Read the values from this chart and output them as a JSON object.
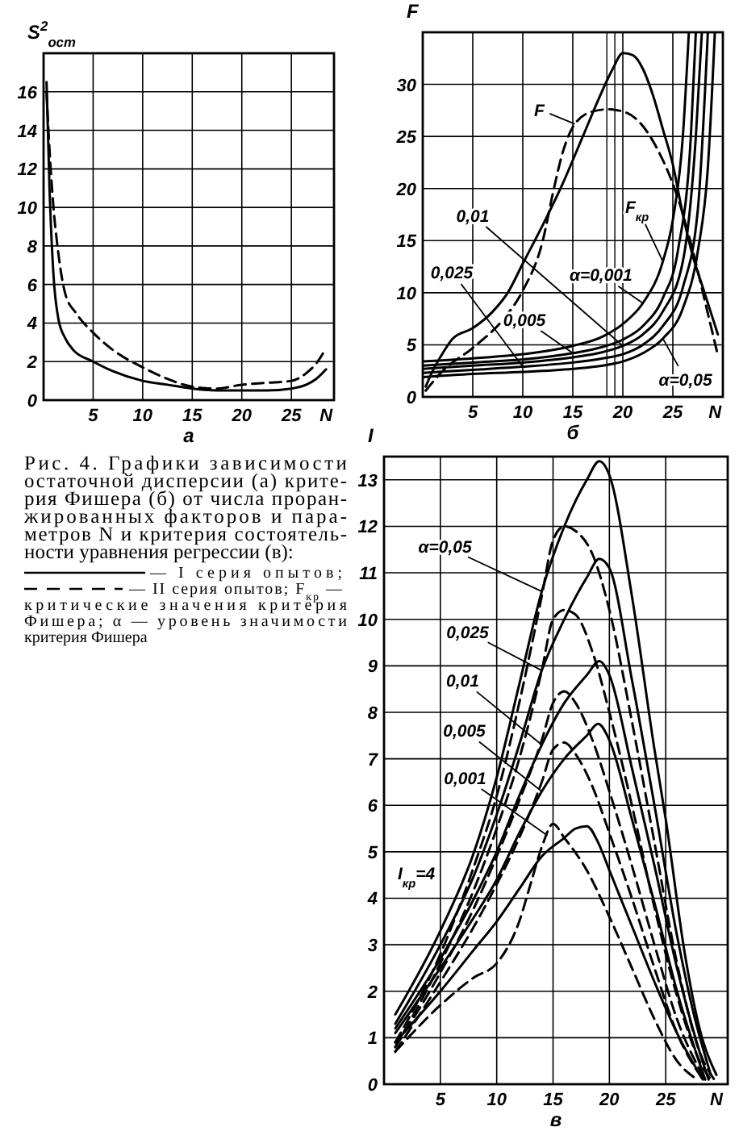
{
  "chart_data": [
    {
      "type": "line",
      "xlabel": "а",
      "ylabel": "S$^{2}$$_{ост}$",
      "xlim": [
        0,
        29.3
      ],
      "ylim": [
        0,
        18
      ],
      "xticks": [
        5,
        10,
        15,
        20,
        25,
        {
          "value": 28.5,
          "label": "N"
        }
      ],
      "yticks": [
        0,
        2,
        4,
        6,
        8,
        10,
        12,
        14,
        16
      ],
      "grid": true,
      "series": [
        {
          "color": "#000000",
          "line_style": "solid",
          "x": [
            0.3,
            0.6,
            1,
            1.5,
            2.2,
            3,
            5,
            7,
            10,
            12.5,
            15,
            17.5,
            20,
            22.5,
            25,
            26.5,
            27.5,
            28.5
          ],
          "values": [
            16.5,
            11,
            6.5,
            4.2,
            3.2,
            2.6,
            2.0,
            1.5,
            1.0,
            0.8,
            0.6,
            0.5,
            0.5,
            0.5,
            0.6,
            0.8,
            1.1,
            1.6
          ]
        },
        {
          "color": "#000000",
          "line_style": "dashed",
          "x": [
            0.3,
            0.6,
            1,
            1.4,
            2.2,
            3.3,
            5,
            7,
            10,
            12.5,
            15,
            17.4,
            20,
            22.5,
            25,
            26.5,
            27.5,
            28.5
          ],
          "values": [
            16,
            13,
            10,
            8,
            5.5,
            4.5,
            3.5,
            2.6,
            1.7,
            1.1,
            0.7,
            0.6,
            0.8,
            0.9,
            1.0,
            1.4,
            1.9,
            2.7
          ]
        }
      ]
    },
    {
      "type": "line",
      "xlabel": "б",
      "ylabel": "F",
      "xlim": [
        0,
        30
      ],
      "ylim": [
        0,
        35
      ],
      "xticks": [
        5,
        10,
        15,
        20,
        25,
        {
          "value": 29.2,
          "label": "N"
        }
      ],
      "yticks": [
        0,
        5,
        10,
        15,
        20,
        25,
        30
      ],
      "grid": true,
      "ref_lines": [
        {
          "axis": "x",
          "value": 18.4
        },
        {
          "axis": "x",
          "value": 19.2
        }
      ],
      "annotations": [
        {
          "text": "F",
          "x": 15.2,
          "y": 26.2
        },
        {
          "text": "0,01",
          "x": 20,
          "y": 4.9
        },
        {
          "text": "0,025",
          "x": 10,
          "y": 2.9
        },
        {
          "text": "0,005",
          "x": 15,
          "y": 4.2
        },
        {
          "text": "α=0,001",
          "x": 22,
          "y": 9
        },
        {
          "text": "α=0,05",
          "x": 24,
          "y": 5.6
        },
        {
          "text": "F$_{кр}$",
          "x": 24,
          "y": 13
        }
      ],
      "series": [
        {
          "color": "#000000",
          "line_style": "solid",
          "x": [
            0.3,
            1,
            2,
            3,
            5,
            7,
            8.5,
            10,
            12,
            14,
            16,
            18,
            19,
            20,
            21,
            22,
            23,
            24,
            25,
            26,
            27,
            28,
            29,
            29.5
          ],
          "values": [
            1,
            2.5,
            4.2,
            5.6,
            6.6,
            8.2,
            10,
            12.8,
            16.5,
            20.5,
            25,
            29.5,
            31.5,
            33,
            32.8,
            31.5,
            29,
            25.7,
            22.3,
            17.5,
            13.5,
            10.5,
            7.5,
            6
          ]
        },
        {
          "color": "#000000",
          "line_style": "dashed",
          "x": [
            0.3,
            2,
            5,
            8,
            10,
            12,
            13,
            14,
            15.2,
            17,
            18.5,
            20.3,
            22,
            23.5,
            25.7,
            27,
            28.5,
            29.5
          ],
          "values": [
            0.6,
            2.5,
            4.7,
            7.4,
            10.2,
            15,
            19.5,
            23.5,
            26.2,
            27.4,
            27.6,
            27.3,
            26,
            23.7,
            18.5,
            14,
            8,
            4
          ]
        },
        {
          "color": "#000000",
          "line_style": "solid",
          "x": [
            0,
            5,
            10,
            15,
            18,
            20,
            22,
            24,
            25,
            26,
            26.6
          ],
          "values": [
            3.4,
            3.7,
            4.1,
            4.9,
            5.8,
            7,
            9,
            13,
            17,
            25,
            35
          ]
        },
        {
          "color": "#000000",
          "line_style": "solid",
          "x": [
            0,
            5,
            10,
            15,
            18,
            20,
            22,
            24,
            25.5,
            26.8,
            27.3
          ],
          "values": [
            3,
            3.3,
            3.6,
            4.2,
            4.8,
            5.5,
            6.8,
            9.5,
            14,
            25,
            35
          ]
        },
        {
          "color": "#000000",
          "line_style": "solid",
          "x": [
            0,
            5,
            10,
            15,
            18,
            20,
            22,
            24,
            26,
            27.3,
            27.9
          ],
          "values": [
            2.7,
            3,
            3.3,
            3.8,
            4.3,
            4.9,
            6,
            8.2,
            13,
            25,
            35
          ]
        },
        {
          "color": "#000000",
          "line_style": "solid",
          "x": [
            0,
            5,
            10,
            15,
            18,
            20,
            22,
            24,
            26,
            27.5,
            28.5
          ],
          "values": [
            2.3,
            2.6,
            2.9,
            3.3,
            3.7,
            4.1,
            5,
            6.8,
            10.5,
            18,
            35
          ]
        },
        {
          "color": "#000000",
          "line_style": "solid",
          "x": [
            0,
            5,
            10,
            15,
            18,
            20,
            22,
            24,
            26,
            27.5,
            28.5,
            29.2
          ],
          "values": [
            1.9,
            2.2,
            2.4,
            2.7,
            3.0,
            3.4,
            4.2,
            5.6,
            8.5,
            14,
            22,
            35
          ]
        }
      ]
    },
    {
      "type": "other",
      "annotations": [
        "Рис. 4. Графики зависимости",
        "остаточной дисперсии (а) крите-",
        "рия Фишера (б) от числа проран-",
        "жированных факторов и пара-",
        "метров N и критерия состоятель-",
        "ности уравнения регрессии (в):",
        "— I серия опытов;",
        "— II серия опытов; F$_{кр}$ —",
        "критические значения критерия",
        "Фишера; α — уровень значимости",
        "критерия Фишера"
      ]
    },
    {
      "type": "line",
      "xlabel": "в",
      "ylabel": "I",
      "xlim": [
        0,
        30.5
      ],
      "ylim": [
        0,
        13.5
      ],
      "xticks": [
        5,
        10,
        15,
        20,
        25,
        {
          "value": 29.5,
          "label": "N"
        }
      ],
      "yticks": [
        0,
        1,
        2,
        3,
        4,
        5,
        6,
        7,
        8,
        9,
        10,
        11,
        12,
        13
      ],
      "grid": true,
      "annotations": [
        {
          "text": "α=0,05",
          "x": 14,
          "y": 10.6
        },
        {
          "text": "0,025",
          "x": 14,
          "y": 8.9
        },
        {
          "text": "0,01",
          "x": 14,
          "y": 7.3
        },
        {
          "text": "0,005",
          "x": 14,
          "y": 6.3
        },
        {
          "text": "0,001",
          "x": 14.5,
          "y": 5.35
        },
        "I$_{кр}$=4"
      ],
      "series": [
        {
          "color": "#000000",
          "line_style": "solid",
          "x": [
            1,
            5,
            8,
            10,
            12,
            14,
            16,
            18,
            19.1,
            20,
            22,
            24,
            25,
            26.7,
            28,
            29.5
          ],
          "values": [
            1.5,
            3.3,
            5,
            6.6,
            8.6,
            10.6,
            12,
            13,
            13.4,
            13.1,
            10.5,
            7.2,
            5.7,
            2.8,
            1.2,
            0.2
          ]
        },
        {
          "color": "#000000",
          "line_style": "dashed",
          "x": [
            1,
            5,
            8,
            10,
            12,
            14,
            15,
            16,
            17,
            18.5,
            20,
            22,
            24,
            26,
            28,
            29.3
          ],
          "values": [
            0.9,
            2.8,
            4.7,
            6.2,
            8.2,
            10.5,
            11.7,
            12,
            11.9,
            11.4,
            10.2,
            7.8,
            5.2,
            2.6,
            0.7,
            0.1
          ]
        },
        {
          "color": "#000000",
          "line_style": "solid",
          "x": [
            1,
            5,
            8,
            10,
            12,
            14,
            16,
            18,
            19.1,
            20,
            22,
            24,
            26,
            27.5,
            29
          ],
          "values": [
            1.3,
            3,
            4.5,
            5.8,
            7.3,
            8.9,
            10,
            10.9,
            11.3,
            11.1,
            8.7,
            6,
            3.2,
            1.5,
            0.2
          ]
        },
        {
          "color": "#000000",
          "line_style": "dashed",
          "x": [
            1,
            5,
            8,
            10,
            12,
            14,
            15,
            16,
            17,
            18.5,
            20,
            22,
            24,
            26,
            28,
            29
          ],
          "values": [
            0.8,
            2.6,
            4.2,
            5.5,
            7,
            8.9,
            10,
            10.2,
            10.1,
            9.3,
            8,
            6,
            3.8,
            1.9,
            0.5,
            0.1
          ]
        },
        {
          "color": "#000000",
          "line_style": "solid",
          "x": [
            1,
            5,
            8,
            10,
            12,
            14,
            16,
            18,
            19.1,
            20,
            22,
            24,
            26,
            28,
            28.8
          ],
          "values": [
            1.2,
            2.7,
            4,
            5,
            6.2,
            7.3,
            8.2,
            8.8,
            9.1,
            8.8,
            6.8,
            4.7,
            2.5,
            0.7,
            0.1
          ]
        },
        {
          "color": "#000000",
          "line_style": "dashed",
          "x": [
            1,
            5,
            8,
            10,
            12,
            14,
            15,
            16,
            17,
            18.5,
            20,
            22,
            24,
            26,
            28.5
          ],
          "values": [
            0.8,
            2.4,
            3.8,
            4.9,
            6.1,
            7.4,
            8.2,
            8.45,
            8.2,
            7.4,
            6.3,
            4.7,
            3,
            1.4,
            0.1
          ]
        },
        {
          "color": "#000000",
          "line_style": "solid",
          "x": [
            1,
            5,
            8,
            10,
            12,
            14,
            16,
            18,
            19,
            20,
            22,
            24,
            26,
            28.5
          ],
          "values": [
            1.1,
            2.5,
            3.6,
            4.4,
            5.4,
            6.3,
            7,
            7.5,
            7.75,
            7.4,
            5.7,
            3.9,
            2,
            0.1
          ]
        },
        {
          "color": "#000000",
          "line_style": "dashed",
          "x": [
            1,
            5,
            8,
            10,
            12,
            14,
            15,
            16,
            17,
            18.5,
            20,
            22,
            24,
            26,
            28.3
          ],
          "values": [
            0.7,
            2.2,
            3.4,
            4.3,
            5.3,
            6.5,
            7.2,
            7.35,
            7.1,
            6.4,
            5.4,
            4,
            2.5,
            1.1,
            0.1
          ]
        },
        {
          "color": "#000000",
          "line_style": "solid",
          "x": [
            1,
            5,
            8,
            10,
            12,
            14,
            16,
            17,
            18,
            19,
            20,
            22,
            24,
            26,
            28.3
          ],
          "values": [
            0.9,
            2,
            2.9,
            3.5,
            4.2,
            4.9,
            5.3,
            5.5,
            5.55,
            5.2,
            4.6,
            3.4,
            2.2,
            1.1,
            0.1
          ]
        },
        {
          "color": "#000000",
          "line_style": "dashed",
          "x": [
            1,
            5,
            8,
            10,
            12,
            13,
            14,
            15,
            16,
            18,
            20,
            22,
            24,
            26,
            27.8
          ],
          "values": [
            0.7,
            1.7,
            2.3,
            2.6,
            3.5,
            4.3,
            5.1,
            5.6,
            5.3,
            4.6,
            3.6,
            2.5,
            1.4,
            0.5,
            0.1
          ]
        }
      ]
    }
  ]
}
